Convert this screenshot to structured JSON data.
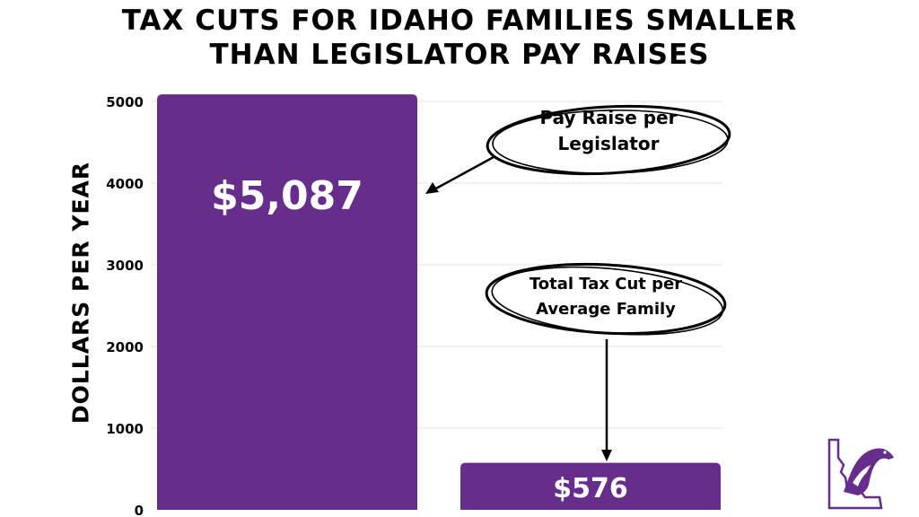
{
  "chart_data": {
    "type": "bar",
    "title_lines": [
      "TAX CUTS FOR IDAHO FAMILIES SMALLER",
      "THAN LEGISLATOR PAY RAISES"
    ],
    "ylabel": "DOLLARS PER YEAR",
    "xlabel": "",
    "ylim": [
      0,
      5000
    ],
    "yticks": [
      "0",
      "1000",
      "2000",
      "3000",
      "4000",
      "5000"
    ],
    "grid": true,
    "categories": [
      "Pay Raise per Legislator",
      "Total Tax Cut per Average Family"
    ],
    "values": [
      5087,
      576
    ],
    "data_labels": [
      "$5,087",
      "$576"
    ],
    "annotations": [
      {
        "lines": [
          "Pay Raise per",
          "Legislator"
        ]
      },
      {
        "lines": [
          "Total Tax Cut per",
          "Average Family"
        ]
      }
    ],
    "bar_color": "#662d8c",
    "label_color": "#ffffff"
  },
  "logo": {
    "icon": "idaho-state-eagle-logo-icon",
    "color": "#662d8c"
  }
}
